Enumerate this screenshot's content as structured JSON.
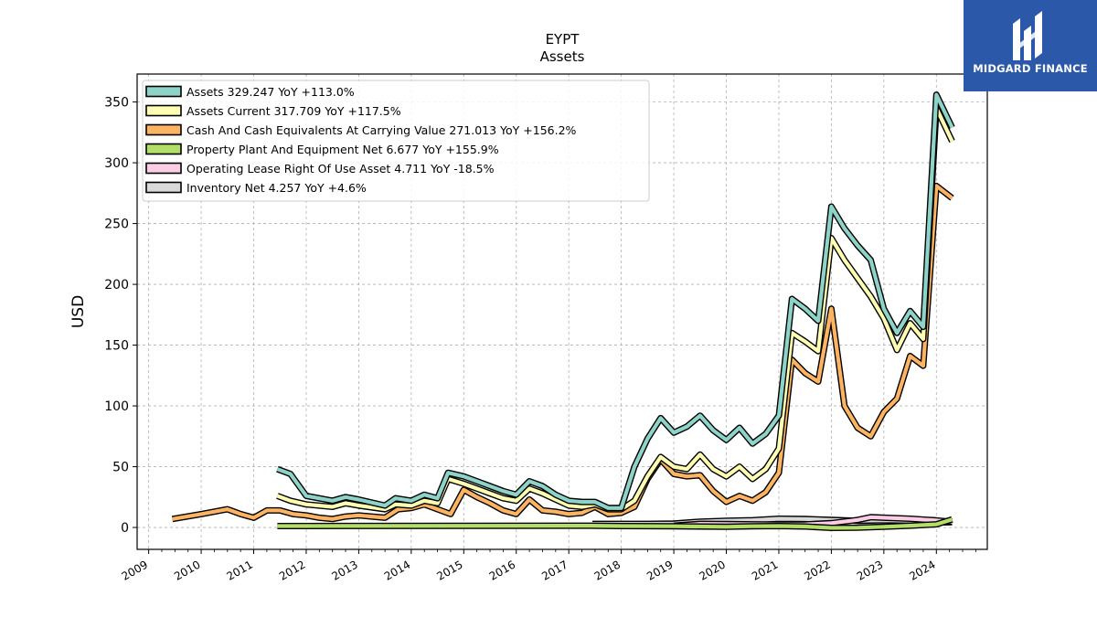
{
  "brand": {
    "name": "MIDGARD FINANCE",
    "bg_color": "#2b58a8"
  },
  "chart_data": {
    "type": "line",
    "title": "EYPT",
    "subtitle": "Assets",
    "ylabel": "USD",
    "xlabel": "",
    "ylim": [
      -18,
      373
    ],
    "xlim": [
      2008.78,
      2024.97
    ],
    "yticks": [
      0,
      50,
      100,
      150,
      200,
      250,
      300,
      350
    ],
    "xticks": [
      "2009",
      "2010",
      "2011",
      "2012",
      "2013",
      "2014",
      "2015",
      "2016",
      "2017",
      "2018",
      "2019",
      "2020",
      "2021",
      "2022",
      "2023",
      "2024"
    ],
    "grid": true,
    "legend_position": "top-left",
    "series": [
      {
        "name": "Assets",
        "legend": "Assets  329.247 YoY +113.0%",
        "color": "#8dd3c7",
        "points": [
          [
            2011.45,
            48
          ],
          [
            2011.7,
            44
          ],
          [
            2012.0,
            26
          ],
          [
            2012.5,
            22
          ],
          [
            2012.75,
            25
          ],
          [
            2013.0,
            23
          ],
          [
            2013.5,
            18
          ],
          [
            2013.7,
            24
          ],
          [
            2014.0,
            22
          ],
          [
            2014.25,
            27
          ],
          [
            2014.5,
            24
          ],
          [
            2014.7,
            45
          ],
          [
            2015.0,
            42
          ],
          [
            2015.25,
            38
          ],
          [
            2015.5,
            34
          ],
          [
            2015.75,
            30
          ],
          [
            2016.0,
            27
          ],
          [
            2016.25,
            38
          ],
          [
            2016.5,
            34
          ],
          [
            2016.75,
            27
          ],
          [
            2017.0,
            22
          ],
          [
            2017.25,
            21
          ],
          [
            2017.5,
            21
          ],
          [
            2017.75,
            16
          ],
          [
            2018.0,
            16
          ],
          [
            2018.25,
            50
          ],
          [
            2018.5,
            73
          ],
          [
            2018.75,
            90
          ],
          [
            2019.0,
            78
          ],
          [
            2019.25,
            83
          ],
          [
            2019.5,
            92
          ],
          [
            2019.75,
            80
          ],
          [
            2020.0,
            72
          ],
          [
            2020.25,
            82
          ],
          [
            2020.5,
            69
          ],
          [
            2020.75,
            77
          ],
          [
            2021.0,
            92
          ],
          [
            2021.25,
            188
          ],
          [
            2021.5,
            180
          ],
          [
            2021.75,
            170
          ],
          [
            2022.0,
            264
          ],
          [
            2022.25,
            246
          ],
          [
            2022.5,
            232
          ],
          [
            2022.75,
            220
          ],
          [
            2023.0,
            180
          ],
          [
            2023.25,
            160
          ],
          [
            2023.5,
            178
          ],
          [
            2023.75,
            165
          ],
          [
            2024.0,
            356
          ],
          [
            2024.3,
            329
          ]
        ]
      },
      {
        "name": "Assets Current",
        "legend": "Assets Current  317.709 YoY +117.5%",
        "color": "#ffffb3",
        "points": [
          [
            2011.45,
            26
          ],
          [
            2011.7,
            22
          ],
          [
            2012.0,
            19
          ],
          [
            2012.5,
            17
          ],
          [
            2012.75,
            20
          ],
          [
            2013.0,
            18
          ],
          [
            2013.5,
            15
          ],
          [
            2013.7,
            19
          ],
          [
            2014.0,
            18
          ],
          [
            2014.25,
            22
          ],
          [
            2014.5,
            20
          ],
          [
            2014.7,
            40
          ],
          [
            2015.0,
            36
          ],
          [
            2015.25,
            32
          ],
          [
            2015.5,
            28
          ],
          [
            2015.75,
            24
          ],
          [
            2016.0,
            22
          ],
          [
            2016.25,
            32
          ],
          [
            2016.5,
            28
          ],
          [
            2016.75,
            23
          ],
          [
            2017.0,
            18
          ],
          [
            2017.25,
            17
          ],
          [
            2017.5,
            19
          ],
          [
            2017.75,
            15
          ],
          [
            2018.0,
            15
          ],
          [
            2018.25,
            22
          ],
          [
            2018.5,
            42
          ],
          [
            2018.75,
            58
          ],
          [
            2019.0,
            50
          ],
          [
            2019.25,
            48
          ],
          [
            2019.5,
            60
          ],
          [
            2019.75,
            48
          ],
          [
            2020.0,
            42
          ],
          [
            2020.25,
            50
          ],
          [
            2020.5,
            40
          ],
          [
            2020.75,
            48
          ],
          [
            2021.0,
            65
          ],
          [
            2021.25,
            160
          ],
          [
            2021.5,
            153
          ],
          [
            2021.75,
            145
          ],
          [
            2022.0,
            238
          ],
          [
            2022.25,
            220
          ],
          [
            2022.5,
            205
          ],
          [
            2022.75,
            190
          ],
          [
            2023.0,
            172
          ],
          [
            2023.25,
            146
          ],
          [
            2023.5,
            168
          ],
          [
            2023.75,
            155
          ],
          [
            2024.0,
            345
          ],
          [
            2024.3,
            317.7
          ]
        ]
      },
      {
        "name": "Cash And Cash Equivalents At Carrying Value",
        "legend": "Cash And Cash Equivalents At Carrying Value  271.013 YoY +156.2%",
        "color": "#fdb462",
        "points": [
          [
            2009.45,
            7
          ],
          [
            2010.0,
            11
          ],
          [
            2010.5,
            15
          ],
          [
            2010.75,
            11
          ],
          [
            2011.0,
            8
          ],
          [
            2011.25,
            14
          ],
          [
            2011.5,
            14
          ],
          [
            2011.75,
            11
          ],
          [
            2012.0,
            10
          ],
          [
            2012.25,
            8
          ],
          [
            2012.5,
            7
          ],
          [
            2012.75,
            9
          ],
          [
            2013.0,
            10
          ],
          [
            2013.25,
            9
          ],
          [
            2013.5,
            8
          ],
          [
            2013.75,
            15
          ],
          [
            2014.0,
            16
          ],
          [
            2014.25,
            19
          ],
          [
            2014.5,
            15
          ],
          [
            2014.75,
            11
          ],
          [
            2015.0,
            31
          ],
          [
            2015.25,
            25
          ],
          [
            2015.5,
            20
          ],
          [
            2015.75,
            14
          ],
          [
            2016.0,
            11
          ],
          [
            2016.25,
            23
          ],
          [
            2016.5,
            14
          ],
          [
            2016.75,
            13
          ],
          [
            2017.0,
            11
          ],
          [
            2017.25,
            12
          ],
          [
            2017.5,
            17
          ],
          [
            2017.75,
            11
          ],
          [
            2018.0,
            12
          ],
          [
            2018.25,
            17
          ],
          [
            2018.5,
            40
          ],
          [
            2018.75,
            56
          ],
          [
            2019.0,
            44
          ],
          [
            2019.25,
            42
          ],
          [
            2019.5,
            43
          ],
          [
            2019.75,
            30
          ],
          [
            2020.0,
            21
          ],
          [
            2020.25,
            26
          ],
          [
            2020.5,
            22
          ],
          [
            2020.75,
            29
          ],
          [
            2021.0,
            45
          ],
          [
            2021.25,
            138
          ],
          [
            2021.5,
            127
          ],
          [
            2021.75,
            120
          ],
          [
            2022.0,
            180
          ],
          [
            2022.25,
            100
          ],
          [
            2022.5,
            82
          ],
          [
            2022.75,
            75
          ],
          [
            2023.0,
            95
          ],
          [
            2023.25,
            106
          ],
          [
            2023.5,
            141
          ],
          [
            2023.75,
            133
          ],
          [
            2024.0,
            281
          ],
          [
            2024.3,
            271
          ]
        ]
      },
      {
        "name": "Property Plant And Equipment Net",
        "legend": "Property Plant And Equipment Net  6.677 YoY +155.9%",
        "color": "#b3de69",
        "points": [
          [
            2011.45,
            1.2
          ],
          [
            2017.4,
            1.5
          ],
          [
            2018.0,
            1.2
          ],
          [
            2019.0,
            1.0
          ],
          [
            2020.0,
            0.6
          ],
          [
            2020.5,
            1.0
          ],
          [
            2021.0,
            1.2
          ],
          [
            2021.5,
            0.8
          ],
          [
            2022.0,
            -0.3
          ],
          [
            2022.5,
            -0.2
          ],
          [
            2023.0,
            0.6
          ],
          [
            2023.5,
            1.5
          ],
          [
            2024.0,
            2.6
          ],
          [
            2024.3,
            6.7
          ]
        ]
      },
      {
        "name": "Operating Lease Right Of Use Asset",
        "legend": "Operating Lease Right Of Use Asset  4.711 YoY -18.5%",
        "color": "#fccde5",
        "points": [
          [
            2019.0,
            1.5
          ],
          [
            2019.5,
            3.0
          ],
          [
            2020.0,
            2.8
          ],
          [
            2020.5,
            2.6
          ],
          [
            2021.0,
            2.4
          ],
          [
            2021.5,
            2.5
          ],
          [
            2022.0,
            3.6
          ],
          [
            2022.5,
            6.2
          ],
          [
            2022.75,
            8.5
          ],
          [
            2023.0,
            8.0
          ],
          [
            2023.5,
            7.2
          ],
          [
            2024.0,
            5.8
          ],
          [
            2024.3,
            4.7
          ]
        ]
      },
      {
        "name": "Inventory Net",
        "legend": "Inventory Net  4.257 YoY +4.6%",
        "color": "#d9d9d9",
        "points": [
          [
            2017.45,
            3.0
          ],
          [
            2018.0,
            3.0
          ],
          [
            2018.5,
            3.0
          ],
          [
            2019.0,
            3.2
          ],
          [
            2019.5,
            4.8
          ],
          [
            2020.0,
            5.5
          ],
          [
            2020.5,
            6.0
          ],
          [
            2021.0,
            7.2
          ],
          [
            2021.5,
            7.0
          ],
          [
            2022.0,
            6.2
          ],
          [
            2022.5,
            5.5
          ],
          [
            2023.0,
            6.0
          ],
          [
            2023.5,
            5.5
          ],
          [
            2024.0,
            4.0
          ],
          [
            2024.3,
            4.3
          ]
        ]
      }
    ]
  }
}
